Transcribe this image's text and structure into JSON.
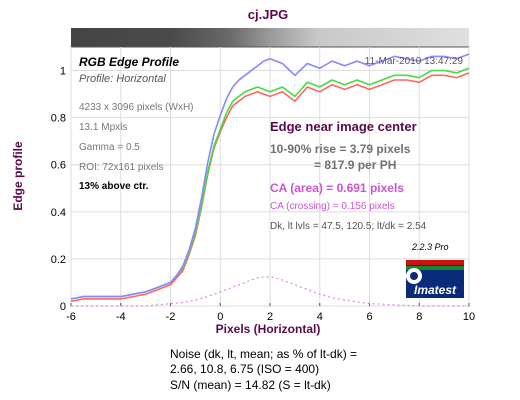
{
  "chart_data": {
    "type": "line",
    "title": "cj.JPG",
    "panel_title": "RGB Edge Profile",
    "panel_subtitle": "Profile: Horizontal",
    "timestamp": "11-Mar-2010 13:47:29",
    "xlabel": "Pixels (Horizontal)",
    "ylabel": "Edge profile",
    "xlim": [
      -6,
      10
    ],
    "ylim": [
      0,
      1.1
    ],
    "xticks": [
      "-6",
      "-4",
      "-2",
      "0",
      "2",
      "4",
      "6",
      "8",
      "10"
    ],
    "yticks": [
      "0",
      "0.2",
      "0.4",
      "0.6",
      "0.8",
      "1"
    ],
    "grid": true,
    "series": [
      {
        "color": "#ff6666",
        "x": [
          -6,
          -5.5,
          -5,
          -4.5,
          -4,
          -3.5,
          -3,
          -2.5,
          -2,
          -1.75,
          -1.5,
          -1.25,
          -1,
          -0.75,
          -0.5,
          -0.25,
          0,
          0.25,
          0.5,
          0.75,
          1,
          1.25,
          1.5,
          1.75,
          2,
          2.5,
          3,
          3.5,
          4,
          4.5,
          5,
          5.5,
          6,
          6.5,
          7,
          7.5,
          8,
          8.5,
          9,
          9.5,
          10
        ],
        "y": [
          0.02,
          0.03,
          0.03,
          0.03,
          0.03,
          0.04,
          0.05,
          0.07,
          0.09,
          0.12,
          0.15,
          0.22,
          0.3,
          0.42,
          0.56,
          0.67,
          0.74,
          0.8,
          0.85,
          0.87,
          0.89,
          0.9,
          0.91,
          0.9,
          0.89,
          0.91,
          0.87,
          0.93,
          0.91,
          0.94,
          0.92,
          0.94,
          0.92,
          0.94,
          0.96,
          0.96,
          0.95,
          0.98,
          0.98,
          0.97,
          0.99
        ]
      },
      {
        "color": "#44dd44",
        "x": [
          -6,
          -5.5,
          -5,
          -4.5,
          -4,
          -3.5,
          -3,
          -2.5,
          -2,
          -1.75,
          -1.5,
          -1.25,
          -1,
          -0.75,
          -0.5,
          -0.25,
          0,
          0.25,
          0.5,
          0.75,
          1,
          1.25,
          1.5,
          1.75,
          2,
          2.5,
          3,
          3.5,
          4,
          4.5,
          5,
          5.5,
          6,
          6.5,
          7,
          7.5,
          8,
          8.5,
          9,
          9.5,
          10
        ],
        "y": [
          0.03,
          0.04,
          0.04,
          0.04,
          0.04,
          0.05,
          0.06,
          0.08,
          0.1,
          0.13,
          0.16,
          0.23,
          0.31,
          0.43,
          0.57,
          0.68,
          0.75,
          0.82,
          0.87,
          0.89,
          0.91,
          0.92,
          0.93,
          0.92,
          0.91,
          0.93,
          0.89,
          0.95,
          0.93,
          0.96,
          0.94,
          0.96,
          0.94,
          0.96,
          0.98,
          0.98,
          0.97,
          1.0,
          1.0,
          0.99,
          1.01
        ]
      },
      {
        "color": "#8888ff",
        "x": [
          -6,
          -5.5,
          -5,
          -4.5,
          -4,
          -3.5,
          -3,
          -2.5,
          -2,
          -1.75,
          -1.5,
          -1.25,
          -1,
          -0.75,
          -0.5,
          -0.25,
          0,
          0.25,
          0.5,
          0.75,
          1,
          1.25,
          1.5,
          1.75,
          2,
          2.5,
          3,
          3.5,
          4,
          4.5,
          5,
          5.5,
          6,
          6.5,
          7,
          7.5,
          8,
          8.5,
          9,
          9.5,
          10
        ],
        "y": [
          0.03,
          0.04,
          0.04,
          0.04,
          0.04,
          0.05,
          0.06,
          0.08,
          0.1,
          0.13,
          0.17,
          0.24,
          0.33,
          0.46,
          0.61,
          0.73,
          0.81,
          0.88,
          0.93,
          0.96,
          0.98,
          1.0,
          1.02,
          1.04,
          1.05,
          1.03,
          0.98,
          1.03,
          1.01,
          1.04,
          1.02,
          1.04,
          1.02,
          1.04,
          1.06,
          1.05,
          1.04,
          1.06,
          1.06,
          1.05,
          1.07
        ]
      },
      {
        "color": "#dd88dd",
        "dashed": true,
        "x": [
          -6,
          -5,
          -4,
          -3,
          -2.5,
          -2,
          -1.5,
          -1,
          -0.5,
          0,
          0.5,
          1,
          1.5,
          2,
          2.5,
          3,
          3.5,
          4,
          4.5,
          5,
          6,
          7,
          8,
          9,
          10
        ],
        "y": [
          0.0,
          0.0,
          0.0,
          0.0,
          0.005,
          0.01,
          0.015,
          0.025,
          0.04,
          0.06,
          0.08,
          0.1,
          0.12,
          0.125,
          0.11,
          0.09,
          0.07,
          0.05,
          0.035,
          0.025,
          0.01,
          0.005,
          0.0,
          0.0,
          0.0
        ]
      }
    ],
    "annotations": {
      "image_info": "4233 x 3096 pixels (WxH)",
      "megapixels": "13.1 Mpxls",
      "gamma": "Gamma = 0.5",
      "roi": "ROI: 72x161 pixels",
      "position": "13% above ctr.",
      "heading": "Edge near image center",
      "rise_line1": "10-90% rise = 3.79 pixels",
      "rise_line2": "= 817.9 per PH",
      "ca_area": "CA (area) = 0.691 pixels",
      "ca_crossing": "CA (crossing) = 0.156 pixels",
      "levels": "Dk, lt lvls = 47.5, 120.5;  lt/dk = 2.54",
      "version": "2.2.3  Pro",
      "logo_text": "Imatest"
    },
    "noise": {
      "line1": "Noise (dk, lt, mean; as % of lt-dk) =",
      "line2": "2.66,  10.8,  6.75  (ISO =  400)",
      "line3": "S/N (mean) = 14.82  (S = lt-dk)"
    },
    "colors": {
      "title": "#5a0a4a",
      "heading": "#5a0a4a",
      "rise": "#707070",
      "ca_area": "#cc55cc",
      "ca_crossing": "#cc55cc",
      "axis_text": "#5a0a4a"
    }
  }
}
